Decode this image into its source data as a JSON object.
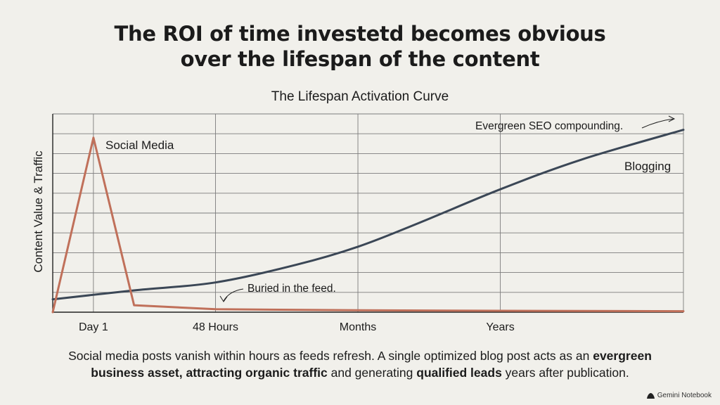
{
  "headline": {
    "line1": "The ROI of time investetd becomes obvious",
    "line2": "over the lifespan of the content"
  },
  "chart_data": {
    "type": "line",
    "title": "The Lifespan Activation Curve",
    "xlabel": "",
    "ylabel": "Content Value & Traffic",
    "x_ticks": [
      "Day 1",
      "48 Hours",
      "Months",
      "Years"
    ],
    "x_tick_positions": [
      1,
      4,
      7.5,
      11
    ],
    "xlim": [
      0,
      15.5
    ],
    "ylim": [
      0,
      10
    ],
    "grid": true,
    "series": [
      {
        "name": "Social Media",
        "color": "#c0705a",
        "x": [
          0,
          1,
          2,
          4,
          7.5,
          11,
          15.5
        ],
        "y": [
          0,
          8.8,
          0.35,
          0.15,
          0.1,
          0.07,
          0.05
        ]
      },
      {
        "name": "Blogging",
        "color": "#3b4756",
        "x": [
          0,
          2,
          4,
          6,
          7.5,
          9,
          11,
          13,
          15.5
        ],
        "y": [
          0.65,
          1.1,
          1.5,
          2.4,
          3.3,
          4.5,
          6.2,
          7.7,
          9.2
        ]
      }
    ],
    "annotations": [
      {
        "text": "Evergreen SEO compounding."
      },
      {
        "text": "Buried in the feed."
      }
    ]
  },
  "caption": {
    "part1": "Social media posts vanish within hours as feeds refresh. A single optimized blog post acts as an ",
    "bold1": "evergreen",
    "bold2": "business asset, attracting organic traffic",
    "part2": " and generating ",
    "bold3": "qualified leads",
    "part3": " years after publication."
  },
  "brand": {
    "label": "Gemini Notebook",
    "icon": "gemini-notebook-icon"
  }
}
